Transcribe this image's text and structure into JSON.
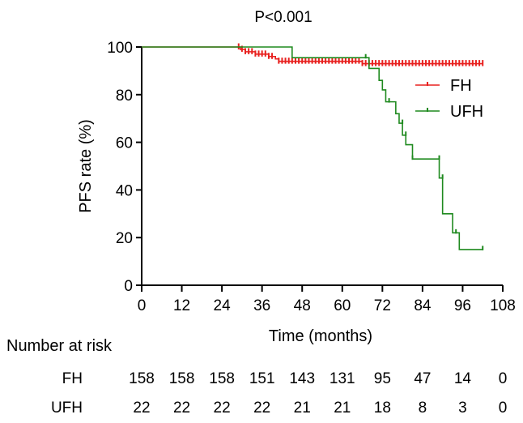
{
  "chart_data": {
    "type": "line",
    "subtype": "kaplan-meier",
    "title": "P<0.001",
    "xlabel": "Time (months)",
    "ylabel": "PFS rate (%)",
    "xlim": [
      0,
      108
    ],
    "ylim": [
      0,
      100
    ],
    "xticks": [
      "0",
      "12",
      "24",
      "36",
      "48",
      "60",
      "72",
      "84",
      "96",
      "108"
    ],
    "yticks": [
      "0",
      "20",
      "40",
      "60",
      "80",
      "100"
    ],
    "legend_position": "right",
    "series": [
      {
        "name": "FH",
        "color": "#e8211f",
        "steps": [
          [
            0,
            100
          ],
          [
            29,
            100
          ],
          [
            29.5,
            99
          ],
          [
            31,
            98
          ],
          [
            34,
            97
          ],
          [
            38,
            96
          ],
          [
            40,
            95
          ],
          [
            41,
            94
          ],
          [
            65,
            94
          ],
          [
            66,
            93
          ],
          [
            102,
            93
          ]
        ],
        "censors": [
          29,
          30,
          31,
          32,
          33,
          34,
          35,
          36,
          37,
          38,
          39,
          41,
          42,
          43,
          44,
          45,
          46,
          47,
          48,
          49,
          50,
          51,
          52,
          53,
          54,
          55,
          56,
          57,
          58,
          59,
          60,
          61,
          62,
          63,
          64,
          65,
          66,
          67,
          68,
          69,
          70,
          71,
          72,
          73,
          74,
          75,
          76,
          77,
          78,
          79,
          80,
          81,
          82,
          83,
          84,
          85,
          86,
          87,
          88,
          89,
          90,
          91,
          92,
          93,
          94,
          95,
          96,
          97,
          98,
          99,
          100,
          101,
          102
        ]
      },
      {
        "name": "UFH",
        "color": "#1f8a1f",
        "steps": [
          [
            0,
            100
          ],
          [
            45,
            100
          ],
          [
            45,
            95.5
          ],
          [
            68,
            95.5
          ],
          [
            68,
            91
          ],
          [
            71,
            91
          ],
          [
            71,
            86
          ],
          [
            72,
            86
          ],
          [
            72,
            82
          ],
          [
            73,
            82
          ],
          [
            73,
            77
          ],
          [
            76,
            77
          ],
          [
            76,
            72
          ],
          [
            77,
            72
          ],
          [
            77,
            68
          ],
          [
            78,
            68
          ],
          [
            78,
            63
          ],
          [
            79,
            63
          ],
          [
            79,
            59
          ],
          [
            81,
            59
          ],
          [
            81,
            53
          ],
          [
            89,
            53
          ],
          [
            89,
            45
          ],
          [
            90,
            45
          ],
          [
            90,
            30
          ],
          [
            93,
            30
          ],
          [
            93,
            22
          ],
          [
            95,
            22
          ],
          [
            95,
            15
          ],
          [
            98,
            15
          ],
          [
            102,
            15
          ]
        ],
        "censors": [
          [
            67,
            95.5
          ],
          [
            74,
            77
          ],
          [
            78,
            68
          ],
          [
            79,
            63
          ],
          [
            81,
            53
          ],
          [
            89,
            53
          ],
          [
            90,
            45
          ],
          [
            94,
            22
          ],
          [
            102,
            15
          ]
        ]
      }
    ],
    "risk_table": {
      "title": "Number at risk",
      "time_points": [
        "0",
        "12",
        "24",
        "36",
        "48",
        "60",
        "72",
        "84",
        "96",
        "108"
      ],
      "rows": [
        {
          "label": "FH",
          "values": [
            "158",
            "158",
            "158",
            "151",
            "143",
            "131",
            "95",
            "47",
            "14",
            "0"
          ]
        },
        {
          "label": "UFH",
          "values": [
            "22",
            "22",
            "22",
            "22",
            "21",
            "21",
            "18",
            "8",
            "3",
            "0"
          ]
        }
      ]
    }
  }
}
